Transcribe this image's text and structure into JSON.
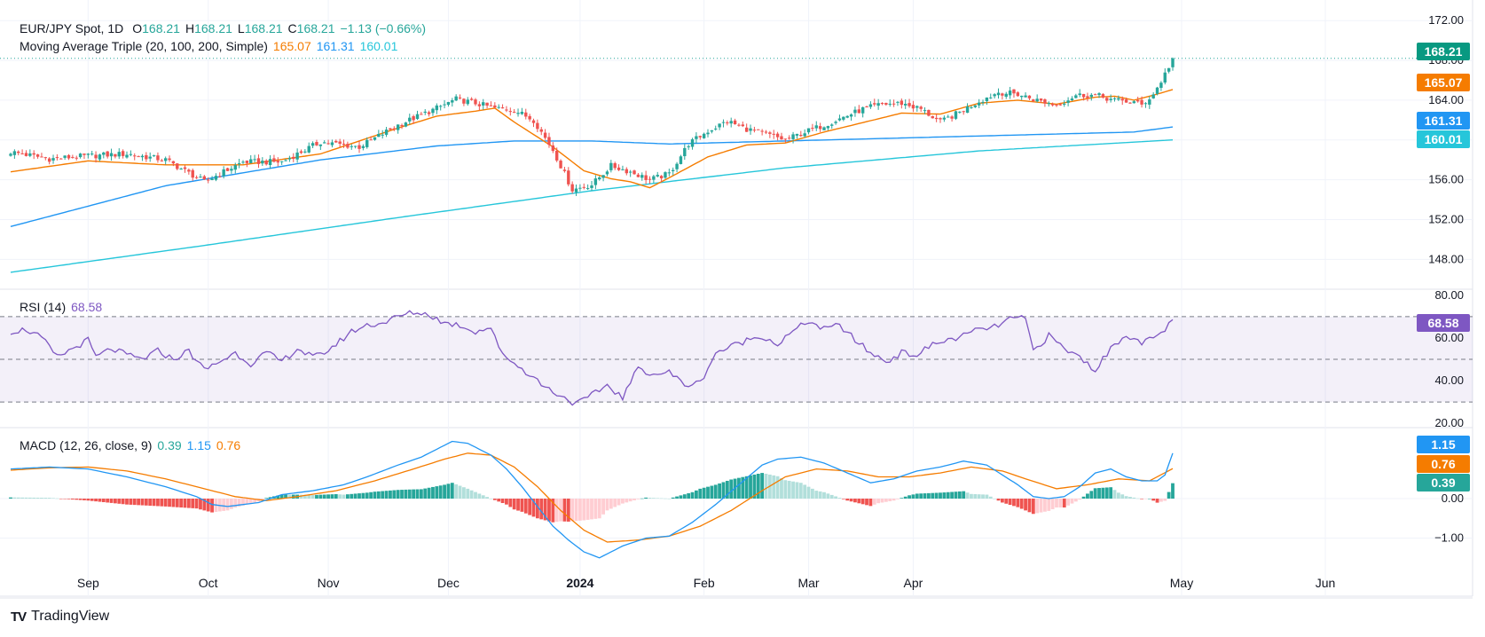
{
  "header": {
    "symbol": "EUR/JPY Spot, 1D",
    "ohlc": {
      "o_label": "O",
      "o": "168.21",
      "h_label": "H",
      "h": "168.21",
      "l_label": "L",
      "l": "168.21",
      "c_label": "C",
      "c": "168.21",
      "change": "−1.13 (−0.66%)"
    },
    "ma_label": "Moving Average Triple (20, 100, 200, Simple)",
    "ma_values": [
      "165.07",
      "161.31",
      "160.01"
    ],
    "rsi_label": "RSI (14)",
    "rsi_value": "68.58",
    "macd_label": "MACD (12, 26, close, 9)",
    "macd_values": [
      "0.39",
      "1.15",
      "0.76"
    ]
  },
  "colors": {
    "up": "#26a69a",
    "down": "#ef5350",
    "ma20": "#f57c00",
    "ma100": "#2196f3",
    "ma200": "#26c6da",
    "rsi": "#7e57c2",
    "macd": "#2196f3",
    "signal": "#f57c00",
    "hist_up_strong": "#26a69a",
    "hist_up_weak": "#b2dfdb",
    "hist_down_strong": "#ef5350",
    "hist_down_weak": "#ffcdd2"
  },
  "footer": {
    "brand": "TradingView",
    "logo_text": "TV"
  },
  "chart_data": [
    {
      "type": "candlestick",
      "title": "EUR/JPY Spot, 1D",
      "x_tick_labels": [
        "Sep",
        "Oct",
        "Nov",
        "Dec",
        "2024",
        "Feb",
        "Mar",
        "Apr",
        "May",
        "Jun"
      ],
      "y_tick_labels": [
        "172.00",
        "168.00",
        "164.00",
        "160.00",
        "156.00",
        "152.00",
        "148.00"
      ],
      "ylim": [
        145.0,
        173.0
      ],
      "price_badges": [
        {
          "label": "168.21",
          "series": "close"
        },
        {
          "label": "165.07",
          "series": "MA 20"
        },
        {
          "label": "161.31",
          "series": "MA 100"
        },
        {
          "label": "160.01",
          "series": "MA 200"
        }
      ],
      "close_anchors": [
        [
          0,
          158.8
        ],
        [
          10,
          158.1
        ],
        [
          20,
          158.4
        ],
        [
          30,
          158.6
        ],
        [
          40,
          158.0
        ],
        [
          50,
          155.8
        ],
        [
          60,
          157.8
        ],
        [
          70,
          157.8
        ],
        [
          80,
          159.8
        ],
        [
          90,
          159.3
        ],
        [
          100,
          161.5
        ],
        [
          110,
          163.2
        ],
        [
          115,
          164.1
        ],
        [
          120,
          163.7
        ],
        [
          125,
          163.2
        ],
        [
          130,
          163.0
        ],
        [
          135,
          162.0
        ],
        [
          140,
          159.0
        ],
        [
          145,
          155.0
        ],
        [
          150,
          155.5
        ],
        [
          155,
          157.4
        ],
        [
          160,
          156.8
        ],
        [
          165,
          156.0
        ],
        [
          170,
          156.6
        ],
        [
          175,
          159.6
        ],
        [
          180,
          160.9
        ],
        [
          185,
          161.9
        ],
        [
          190,
          161.1
        ],
        [
          195,
          160.6
        ],
        [
          200,
          160.0
        ],
        [
          205,
          160.8
        ],
        [
          210,
          161.5
        ],
        [
          215,
          162.3
        ],
        [
          220,
          163.1
        ],
        [
          225,
          163.6
        ],
        [
          230,
          163.7
        ],
        [
          235,
          163.1
        ],
        [
          240,
          161.8
        ],
        [
          245,
          162.8
        ],
        [
          250,
          163.9
        ],
        [
          255,
          164.8
        ],
        [
          260,
          164.6
        ],
        [
          265,
          164.0
        ],
        [
          270,
          163.5
        ],
        [
          275,
          164.5
        ],
        [
          280,
          164.5
        ],
        [
          285,
          164.0
        ],
        [
          290,
          163.8
        ],
        [
          292,
          163.5
        ],
        [
          295,
          164.6
        ],
        [
          297,
          165.9
        ],
        [
          299,
          167.4
        ],
        [
          300,
          168.21
        ]
      ],
      "ma20_anchors": [
        [
          0,
          156.8
        ],
        [
          20,
          157.9
        ],
        [
          40,
          157.5
        ],
        [
          60,
          157.5
        ],
        [
          80,
          158.6
        ],
        [
          100,
          161.2
        ],
        [
          110,
          162.4
        ],
        [
          120,
          162.9
        ],
        [
          125,
          163.2
        ],
        [
          130,
          161.8
        ],
        [
          140,
          159.3
        ],
        [
          148,
          156.9
        ],
        [
          155,
          156.1
        ],
        [
          160,
          155.8
        ],
        [
          165,
          155.2
        ],
        [
          170,
          156.2
        ],
        [
          180,
          158.3
        ],
        [
          190,
          159.5
        ],
        [
          200,
          159.7
        ],
        [
          210,
          160.8
        ],
        [
          230,
          162.7
        ],
        [
          240,
          162.6
        ],
        [
          250,
          163.7
        ],
        [
          260,
          164.0
        ],
        [
          270,
          163.6
        ],
        [
          280,
          164.3
        ],
        [
          285,
          164.4
        ],
        [
          290,
          164.0
        ],
        [
          295,
          164.5
        ],
        [
          300,
          165.07
        ]
      ],
      "ma100_anchors": [
        [
          0,
          151.3
        ],
        [
          40,
          155.4
        ],
        [
          80,
          158.0
        ],
        [
          110,
          159.4
        ],
        [
          130,
          159.9
        ],
        [
          150,
          159.9
        ],
        [
          170,
          159.6
        ],
        [
          200,
          159.9
        ],
        [
          230,
          160.2
        ],
        [
          260,
          160.5
        ],
        [
          290,
          160.8
        ],
        [
          300,
          161.31
        ]
      ],
      "ma200_anchors": [
        [
          0,
          146.7
        ],
        [
          50,
          149.4
        ],
        [
          100,
          152.2
        ],
        [
          150,
          154.9
        ],
        [
          200,
          157.2
        ],
        [
          250,
          158.9
        ],
        [
          300,
          160.01
        ]
      ]
    },
    {
      "type": "line",
      "title": "RSI (14)",
      "y_tick_labels": [
        "80.00",
        "60.00",
        "40.00",
        "20.00"
      ],
      "ylim": [
        18,
        82
      ],
      "bands": [
        70,
        50,
        30
      ],
      "value_badge": "68.58",
      "anchors": [
        [
          0,
          63
        ],
        [
          4,
          64
        ],
        [
          8,
          60
        ],
        [
          12,
          51
        ],
        [
          16,
          55
        ],
        [
          20,
          59
        ],
        [
          22,
          51
        ],
        [
          26,
          55
        ],
        [
          30,
          52
        ],
        [
          34,
          50
        ],
        [
          38,
          54
        ],
        [
          42,
          50
        ],
        [
          46,
          54
        ],
        [
          50,
          45
        ],
        [
          54,
          49
        ],
        [
          58,
          53
        ],
        [
          62,
          48
        ],
        [
          66,
          53
        ],
        [
          70,
          49
        ],
        [
          74,
          55
        ],
        [
          78,
          51
        ],
        [
          80,
          52
        ],
        [
          84,
          57
        ],
        [
          88,
          63
        ],
        [
          92,
          66
        ],
        [
          96,
          67
        ],
        [
          100,
          70
        ],
        [
          104,
          72
        ],
        [
          108,
          71
        ],
        [
          112,
          67
        ],
        [
          116,
          66
        ],
        [
          120,
          63
        ],
        [
          124,
          65
        ],
        [
          126,
          55
        ],
        [
          130,
          48
        ],
        [
          134,
          43
        ],
        [
          138,
          37
        ],
        [
          140,
          35
        ],
        [
          144,
          31
        ],
        [
          146,
          29
        ],
        [
          150,
          33
        ],
        [
          154,
          38
        ],
        [
          158,
          32
        ],
        [
          162,
          46
        ],
        [
          166,
          43
        ],
        [
          170,
          44
        ],
        [
          174,
          38
        ],
        [
          178,
          39
        ],
        [
          182,
          53
        ],
        [
          186,
          56
        ],
        [
          190,
          59
        ],
        [
          194,
          61
        ],
        [
          198,
          57
        ],
        [
          202,
          63
        ],
        [
          206,
          68
        ],
        [
          210,
          64
        ],
        [
          214,
          66
        ],
        [
          218,
          59
        ],
        [
          222,
          53
        ],
        [
          226,
          49
        ],
        [
          230,
          53
        ],
        [
          234,
          52
        ],
        [
          238,
          57
        ],
        [
          242,
          59
        ],
        [
          246,
          61
        ],
        [
          250,
          64
        ],
        [
          254,
          65
        ],
        [
          258,
          69
        ],
        [
          262,
          69
        ],
        [
          264,
          54
        ],
        [
          268,
          61
        ],
        [
          272,
          55
        ],
        [
          276,
          51
        ],
        [
          280,
          45
        ],
        [
          284,
          55
        ],
        [
          288,
          62
        ],
        [
          292,
          57
        ],
        [
          296,
          61
        ],
        [
          298,
          64
        ],
        [
          300,
          68.58
        ]
      ]
    },
    {
      "type": "line",
      "title": "MACD (12, 26, close, 9)",
      "y_tick_labels": [
        "0.00",
        "−1.00"
      ],
      "ylim": [
        -1.5,
        1.5
      ],
      "series": [
        {
          "name": "MACD",
          "value_badge": "1.15",
          "anchors": [
            [
              0,
              0.75
            ],
            [
              10,
              0.8
            ],
            [
              20,
              0.75
            ],
            [
              30,
              0.55
            ],
            [
              40,
              0.3
            ],
            [
              48,
              0.05
            ],
            [
              52,
              -0.15
            ],
            [
              56,
              -0.2
            ],
            [
              64,
              -0.1
            ],
            [
              70,
              0.1
            ],
            [
              78,
              0.2
            ],
            [
              86,
              0.35
            ],
            [
              92,
              0.55
            ],
            [
              100,
              0.85
            ],
            [
              106,
              1.05
            ],
            [
              110,
              1.25
            ],
            [
              114,
              1.45
            ],
            [
              118,
              1.4
            ],
            [
              124,
              1.1
            ],
            [
              128,
              0.75
            ],
            [
              132,
              0.3
            ],
            [
              136,
              -0.2
            ],
            [
              140,
              -0.7
            ],
            [
              144,
              -1.05
            ],
            [
              148,
              -1.35
            ],
            [
              152,
              -1.5
            ],
            [
              158,
              -1.2
            ],
            [
              164,
              -1.0
            ],
            [
              170,
              -0.95
            ],
            [
              176,
              -0.6
            ],
            [
              182,
              -0.15
            ],
            [
              188,
              0.35
            ],
            [
              194,
              0.85
            ],
            [
              198,
              1.0
            ],
            [
              204,
              1.05
            ],
            [
              210,
              0.9
            ],
            [
              216,
              0.65
            ],
            [
              222,
              0.4
            ],
            [
              228,
              0.5
            ],
            [
              234,
              0.7
            ],
            [
              240,
              0.8
            ],
            [
              246,
              0.95
            ],
            [
              252,
              0.85
            ],
            [
              256,
              0.6
            ],
            [
              260,
              0.35
            ],
            [
              264,
              0.05
            ],
            [
              268,
              0.0
            ],
            [
              272,
              0.05
            ],
            [
              276,
              0.3
            ],
            [
              280,
              0.65
            ],
            [
              284,
              0.75
            ],
            [
              288,
              0.55
            ],
            [
              292,
              0.45
            ],
            [
              296,
              0.45
            ],
            [
              298,
              0.6
            ],
            [
              300,
              1.15
            ]
          ]
        },
        {
          "name": "Signal",
          "value_badge": "0.76",
          "anchors": [
            [
              0,
              0.72
            ],
            [
              10,
              0.78
            ],
            [
              20,
              0.8
            ],
            [
              30,
              0.7
            ],
            [
              40,
              0.5
            ],
            [
              50,
              0.25
            ],
            [
              58,
              0.05
            ],
            [
              66,
              -0.05
            ],
            [
              74,
              0.05
            ],
            [
              84,
              0.2
            ],
            [
              94,
              0.45
            ],
            [
              104,
              0.75
            ],
            [
              112,
              1.0
            ],
            [
              118,
              1.15
            ],
            [
              124,
              1.1
            ],
            [
              130,
              0.8
            ],
            [
              136,
              0.3
            ],
            [
              142,
              -0.3
            ],
            [
              148,
              -0.8
            ],
            [
              154,
              -1.1
            ],
            [
              162,
              -1.05
            ],
            [
              170,
              -0.95
            ],
            [
              178,
              -0.7
            ],
            [
              186,
              -0.3
            ],
            [
              194,
              0.2
            ],
            [
              200,
              0.55
            ],
            [
              208,
              0.75
            ],
            [
              216,
              0.7
            ],
            [
              224,
              0.55
            ],
            [
              232,
              0.55
            ],
            [
              240,
              0.65
            ],
            [
              248,
              0.8
            ],
            [
              256,
              0.7
            ],
            [
              262,
              0.5
            ],
            [
              270,
              0.25
            ],
            [
              278,
              0.35
            ],
            [
              286,
              0.5
            ],
            [
              294,
              0.45
            ],
            [
              300,
              0.76
            ]
          ]
        },
        {
          "name": "Histogram",
          "value_badge": "0.39"
        }
      ]
    }
  ]
}
